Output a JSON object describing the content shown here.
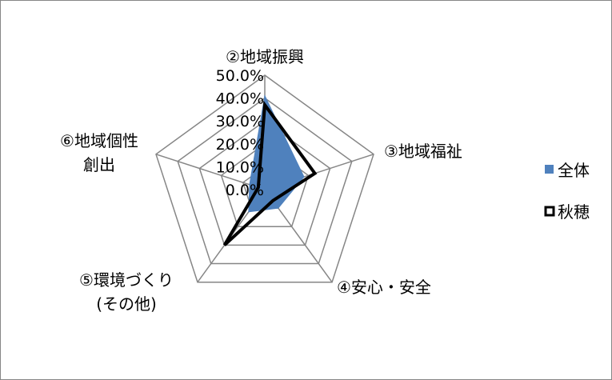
{
  "chart_data": {
    "type": "radar",
    "axes": [
      [
        "②地域振興"
      ],
      [
        "③地域福祉"
      ],
      [
        "④安心・安全"
      ],
      [
        "⑤環境づくり",
        "(その他)"
      ],
      [
        "⑥地域個性",
        "創出"
      ]
    ],
    "tick_labels": [
      "50.0%",
      "40.0%",
      "30.0%",
      "20.0%",
      "10.0%",
      "0.0%"
    ],
    "r_max": 50,
    "r_step": 10,
    "series": [
      {
        "name": "全体",
        "values": [
          41,
          18,
          10,
          12,
          7
        ],
        "color": "#4f81bd",
        "style": "filled"
      },
      {
        "name": "秋穂",
        "values": [
          37,
          23,
          6,
          30,
          3
        ],
        "color": "#000000",
        "style": "line"
      }
    ],
    "legend": {
      "position": "right"
    },
    "colors": {
      "grid": "#868686",
      "frame": "#868686"
    }
  }
}
